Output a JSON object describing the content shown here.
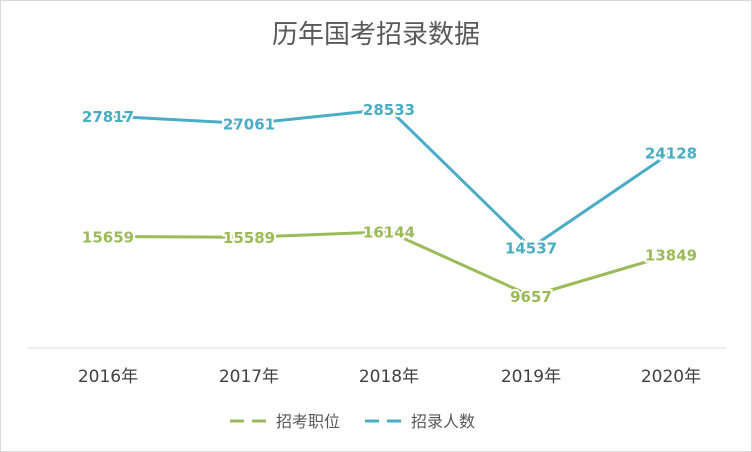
{
  "chart_data": {
    "type": "line",
    "title": "历年国考招录数据",
    "categories": [
      "2016年",
      "2017年",
      "2018年",
      "2019年",
      "2020年"
    ],
    "series": [
      {
        "name": "招考职位",
        "values": [
          15659,
          15589,
          16144,
          9657,
          13849
        ],
        "color": "#9bbb59"
      },
      {
        "name": "招录人数",
        "values": [
          27817,
          27061,
          28533,
          14537,
          24128
        ],
        "color": "#4bacc6"
      }
    ],
    "data_labels": true,
    "grid": false,
    "legend_position": "bottom"
  }
}
